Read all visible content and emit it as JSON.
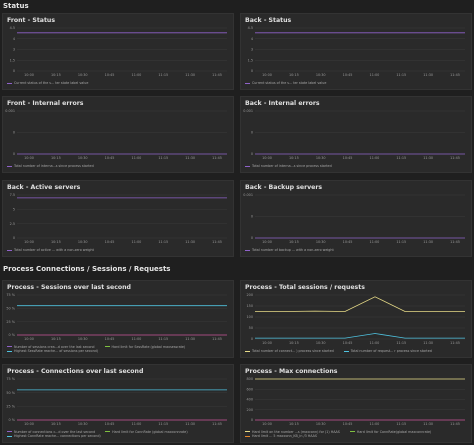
{
  "sections": {
    "status": "Status",
    "process": "Process Connections / Sessions / Requests"
  },
  "colors": {
    "purple": "#8f62c9",
    "cyan": "#4fc3e0",
    "yellow": "#e8dc88",
    "orange": "#e5862b",
    "pink": "#c8559a",
    "green": "#7fbf40",
    "grid": "#3a3a3a"
  },
  "time_ticks": [
    "10:00",
    "10:15",
    "10:30",
    "10:45",
    "11:00",
    "11:15",
    "11:30",
    "11:45"
  ],
  "panels": {
    "front_status": {
      "title": "Front - Status",
      "y_ticks": [
        "4.5",
        "4",
        "3",
        "1.5",
        "0"
      ],
      "legend": [
        "Current status of the s... ter state label value"
      ]
    },
    "back_status": {
      "title": "Back - Status",
      "y_ticks": [
        "4.5",
        "4",
        "3",
        "1.5",
        "0"
      ],
      "legend": [
        "Current status of the s... ter state label value"
      ]
    },
    "front_internal_errors": {
      "title": "Front - Internal errors",
      "y_ticks": [
        "0.001",
        "0",
        "0"
      ],
      "legend": [
        "Total number of interna...s since process started"
      ]
    },
    "back_internal_errors": {
      "title": "Back - Internal errors",
      "y_ticks": [
        "0.001",
        "0",
        "0"
      ],
      "legend": [
        "Total number of interna...s since process started"
      ]
    },
    "back_active_servers": {
      "title": "Back - Active servers",
      "y_ticks": [
        "7.5",
        "5",
        "2.5",
        "0"
      ],
      "legend": [
        "Total number of active ... with a non-zero weight"
      ]
    },
    "back_backup_servers": {
      "title": "Back - Backup servers",
      "y_ticks": [
        "0.001",
        "0",
        "0"
      ],
      "legend": [
        "Total number of backup ... with a non-zero weight"
      ]
    },
    "sessions_last_second": {
      "title": "Process - Sessions over last second",
      "y_ticks": [
        "75 %",
        "50 %",
        "25 %",
        "0 %"
      ],
      "legend": [
        "Number of sessions crea...d over the last second",
        "Hard limit for SessRate (global maxsessrate)",
        "Highest SessRate reache... of sessions per second)"
      ]
    },
    "total_sessions": {
      "title": "Process - Total sessions / requests",
      "y_ticks": [
        "200",
        "150",
        "100",
        "50",
        "0"
      ],
      "legend": [
        "Total number of connect... ) process since started",
        "Total number of request... r process since started"
      ]
    },
    "connections_last_second": {
      "title": "Process - Connections over last second",
      "y_ticks": [
        "75 %",
        "50 %",
        "25 %",
        "0 %"
      ],
      "legend": [
        "Number of connections c...d over the last second",
        "Hard limit for ConnRate (global maxconnrate)",
        "Highest ConnRate reache... connections per second)"
      ]
    },
    "max_connections": {
      "title": "Process - Max connections",
      "y_ticks": [
        "800",
        "600",
        "400",
        "200",
        "0"
      ],
      "legend": [
        "Hard limit on the number ...s (maxconn) for (1) HAAS",
        "Hard limit for ConnRate(global maxconnrate)",
        "Hard limit ... 5 maxconn_KB_in /3 HAAS"
      ]
    }
  },
  "chart_data": [
    {
      "type": "line",
      "title": "Front - Status",
      "x": [
        "10:00",
        "10:15",
        "10:30",
        "10:45",
        "11:00",
        "11:15",
        "11:30",
        "11:45"
      ],
      "ylim": [
        0,
        4.5
      ],
      "series": [
        {
          "values": [
            4,
            4,
            4,
            4,
            4,
            4,
            4,
            4
          ]
        }
      ]
    },
    {
      "type": "line",
      "title": "Back - Status",
      "x": [
        "10:00",
        "10:15",
        "10:30",
        "10:45",
        "11:00",
        "11:15",
        "11:30",
        "11:45"
      ],
      "ylim": [
        0,
        4.5
      ],
      "series": [
        {
          "values": [
            4,
            4,
            4,
            4,
            4,
            4,
            4,
            4
          ]
        }
      ]
    },
    {
      "type": "line",
      "title": "Front - Internal errors",
      "ylim": [
        0,
        0.001
      ],
      "series": [
        {
          "values": [
            0,
            0,
            0,
            0,
            0,
            0,
            0,
            0
          ]
        }
      ]
    },
    {
      "type": "line",
      "title": "Back - Internal errors",
      "ylim": [
        0,
        0.001
      ],
      "series": [
        {
          "values": [
            0,
            0,
            0,
            0,
            0,
            0,
            0,
            0
          ]
        }
      ]
    },
    {
      "type": "line",
      "title": "Back - Active servers",
      "ylim": [
        0,
        7.5
      ],
      "series": [
        {
          "values": [
            7,
            7,
            7,
            7,
            7,
            7,
            7,
            7
          ]
        }
      ]
    },
    {
      "type": "line",
      "title": "Back - Backup servers",
      "ylim": [
        0,
        0.001
      ],
      "series": [
        {
          "values": [
            0,
            0,
            0,
            0,
            0,
            0,
            0,
            0
          ]
        }
      ]
    },
    {
      "type": "line",
      "title": "Process - Sessions over last second",
      "ylim": [
        0,
        0.75
      ],
      "series": [
        {
          "values": [
            0.55,
            0.55,
            0.55,
            0.55,
            0.55,
            0.55,
            0.55,
            0.55
          ]
        },
        {
          "values": [
            0,
            0,
            0,
            0,
            0,
            0,
            0,
            0
          ]
        }
      ]
    },
    {
      "type": "line",
      "title": "Process - Total sessions / requests",
      "ylim": [
        0,
        240
      ],
      "series": [
        {
          "values": [
            150,
            150,
            152,
            150,
            230,
            150,
            150,
            150
          ]
        },
        {
          "values": [
            5,
            5,
            5,
            5,
            30,
            5,
            5,
            5
          ]
        }
      ]
    },
    {
      "type": "line",
      "title": "Process - Connections over last second",
      "ylim": [
        0,
        0.75
      ],
      "series": [
        {
          "values": [
            0.55,
            0.55,
            0.55,
            0.55,
            0.55,
            0.55,
            0.55,
            0.55
          ]
        },
        {
          "values": [
            0,
            0,
            0,
            0,
            0,
            0,
            0,
            0
          ]
        }
      ]
    },
    {
      "type": "line",
      "title": "Process - Max connections",
      "ylim": [
        0,
        800
      ],
      "series": [
        {
          "values": [
            800,
            800,
            800,
            800,
            800,
            800,
            800,
            800
          ]
        },
        {
          "values": [
            0,
            0,
            0,
            0,
            0,
            0,
            0,
            0
          ]
        }
      ]
    }
  ]
}
